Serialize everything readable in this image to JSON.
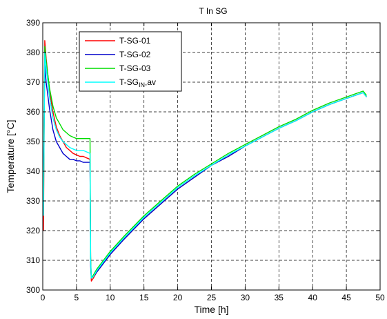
{
  "chart_data": {
    "type": "line",
    "title": "T In SG",
    "xlabel": "Time [h]",
    "ylabel": "Temperature [°C]",
    "xlim": [
      0,
      50
    ],
    "ylim": [
      300,
      390
    ],
    "xticks": [
      "0",
      "5",
      "10",
      "15",
      "20",
      "25",
      "30",
      "35",
      "40",
      "45",
      "50"
    ],
    "yticks": [
      "300",
      "310",
      "320",
      "330",
      "340",
      "350",
      "360",
      "370",
      "380",
      "390"
    ],
    "grid": true,
    "legend_position": "top-left",
    "legend": [
      {
        "label": "T-SG-01"
      },
      {
        "label": "T-SG-02"
      },
      {
        "label": "T-SG-03"
      },
      {
        "label_main": "T-SG",
        "label_sub": "IN",
        "label_tail": ",av"
      }
    ],
    "series": [
      {
        "name": "T-SG-01",
        "color": "#ff0000",
        "x": [
          0.1,
          0.3,
          0.5,
          1.0,
          1.5,
          2.0,
          2.5,
          3.0,
          3.5,
          4.0,
          4.5,
          5.0,
          5.5,
          6.0,
          6.5,
          7.0,
          7.1,
          7.2,
          7.5,
          8.0,
          9.0,
          10.0,
          12.0,
          15.0,
          18.0,
          20.0,
          22.5,
          25.0,
          27.5,
          30.0,
          32.5,
          35.0,
          37.5,
          40.0,
          42.5,
          45.0,
          47.5,
          48.0
        ],
        "y": [
          320,
          384,
          378,
          367,
          360,
          355,
          352,
          350,
          348,
          347,
          346,
          345.5,
          345,
          345,
          344.5,
          344,
          310,
          303,
          304,
          306,
          309,
          312,
          317,
          324,
          330,
          334,
          338,
          342,
          345,
          348.5,
          351.5,
          354.5,
          357,
          360,
          362.5,
          364.5,
          366.5,
          365
        ]
      },
      {
        "name": "T-SG-02",
        "color": "#0000cc",
        "x": [
          0.1,
          0.3,
          0.5,
          1.0,
          1.5,
          2.0,
          2.5,
          3.0,
          3.5,
          4.0,
          4.5,
          5.0,
          5.5,
          6.0,
          6.5,
          7.0,
          7.1,
          7.2,
          7.5,
          8.0,
          9.0,
          10.0,
          12.0,
          15.0,
          18.0,
          20.0,
          22.5,
          25.0,
          27.5,
          30.0,
          32.5,
          35.0,
          37.5,
          40.0,
          42.5,
          45.0,
          47.5,
          48.0
        ],
        "y": [
          338,
          376,
          370,
          361,
          354,
          350,
          348,
          346,
          345,
          344,
          344,
          343.5,
          343.5,
          343,
          343,
          343,
          308,
          304,
          304.5,
          306,
          309,
          312,
          317,
          324,
          330,
          334,
          338,
          342,
          345,
          348.5,
          351.5,
          354.5,
          357,
          360,
          362.5,
          364.5,
          366.5,
          365
        ]
      },
      {
        "name": "T-SG-03",
        "color": "#00dd00",
        "x": [
          0.1,
          0.3,
          0.5,
          1.0,
          1.5,
          2.0,
          2.5,
          3.0,
          3.5,
          4.0,
          4.5,
          5.0,
          5.5,
          6.0,
          6.5,
          7.0,
          7.1,
          7.2,
          7.5,
          8.0,
          9.0,
          10.0,
          12.0,
          15.0,
          18.0,
          20.0,
          22.5,
          25.0,
          27.5,
          30.0,
          32.5,
          35.0,
          37.5,
          40.0,
          42.5,
          45.0,
          47.5,
          48.0
        ],
        "y": [
          330,
          382,
          377,
          368,
          362,
          358,
          356,
          354,
          353,
          352,
          351.5,
          351,
          351,
          351,
          351,
          351,
          311,
          304,
          305,
          307,
          310,
          313,
          318,
          325,
          331,
          335,
          339,
          342.5,
          346,
          349,
          352,
          355,
          357.5,
          360.5,
          363,
          365,
          367,
          365.5
        ]
      },
      {
        "name": "T-SG IN,av",
        "color": "#00ffff",
        "x": [
          0.1,
          0.3,
          0.5,
          1.0,
          1.5,
          2.0,
          2.5,
          3.0,
          3.5,
          4.0,
          4.5,
          5.0,
          5.5,
          6.0,
          6.5,
          7.0,
          7.1,
          7.2,
          7.5,
          8.0,
          9.0,
          10.0,
          12.0,
          15.0,
          18.0,
          20.0,
          22.5,
          25.0,
          27.5,
          30.0,
          32.5,
          35.0,
          37.5,
          40.0,
          42.5,
          45.0,
          47.5,
          48.0
        ],
        "y": [
          325,
          380,
          375,
          365,
          358,
          354,
          351.5,
          350,
          349,
          348,
          347.5,
          347,
          347,
          347,
          346.5,
          346,
          310,
          304,
          304.5,
          306.5,
          309.5,
          312.5,
          317.5,
          324.5,
          330.5,
          334.5,
          338.5,
          342,
          345.5,
          348.5,
          351.5,
          354.5,
          357,
          360,
          362.5,
          364.5,
          366.5,
          365
        ]
      }
    ]
  }
}
